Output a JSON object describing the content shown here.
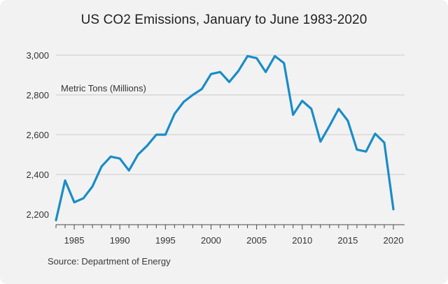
{
  "title": "US CO2 Emissions, January to June 1983-2020",
  "source": "Source: Department of Energy",
  "colors": {
    "line": "#1a8cc8",
    "grid": "#c9c9c9",
    "background": "#f2f2f2"
  },
  "chart_data": {
    "type": "line",
    "title": "US CO2 Emissions, January to June 1983-2020",
    "ylabel": "Metric Tons (Millions)",
    "xlabel": "",
    "xlim": [
      1983,
      2020
    ],
    "ylim": [
      2200,
      3000
    ],
    "x_ticks": [
      1985,
      1990,
      1995,
      2000,
      2005,
      2010,
      2015,
      2020
    ],
    "y_ticks": [
      2200,
      2400,
      2600,
      2800,
      3000
    ],
    "y_tick_labels": [
      "2,200",
      "2,400",
      "2,600",
      "2,800",
      "3,000"
    ],
    "grid": "horizontal",
    "series": [
      {
        "x": [
          1983,
          1984,
          1985,
          1986,
          1987,
          1988,
          1989,
          1990,
          1991,
          1992,
          1993,
          1994,
          1995,
          1996,
          1997,
          1998,
          1999,
          2000,
          2001,
          2002,
          2003,
          2004,
          2005,
          2006,
          2007,
          2008,
          2009,
          2010,
          2011,
          2012,
          2013,
          2014,
          2015,
          2016,
          2017,
          2018,
          2019,
          2020
        ],
        "values": [
          2170,
          2370,
          2260,
          2280,
          2340,
          2440,
          2490,
          2480,
          2420,
          2500,
          2545,
          2600,
          2600,
          2705,
          2765,
          2800,
          2830,
          2905,
          2915,
          2865,
          2920,
          2995,
          2985,
          2915,
          2995,
          2960,
          2700,
          2770,
          2730,
          2565,
          2645,
          2730,
          2670,
          2525,
          2515,
          2605,
          2560,
          2225
        ]
      }
    ]
  }
}
